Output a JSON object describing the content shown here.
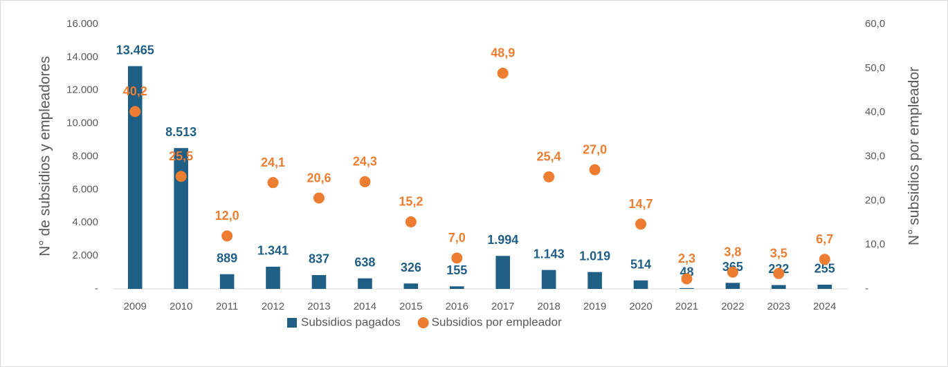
{
  "chart_data": {
    "type": "bar",
    "y_label": "N° de subsidios y empleadores",
    "y2_label": "N° subsidios por empleador",
    "categories": [
      "2009",
      "2010",
      "2011",
      "2012",
      "2013",
      "2014",
      "2015",
      "2016",
      "2017",
      "2018",
      "2019",
      "2020",
      "2021",
      "2022",
      "2023",
      "2024"
    ],
    "series": [
      {
        "name": "Subsidios pagados",
        "type": "bar",
        "color": "#1f5f86",
        "values": [
          13465,
          8513,
          889,
          1341,
          837,
          638,
          326,
          155,
          1994,
          1143,
          1019,
          514,
          48,
          365,
          232,
          255
        ],
        "value_labels": [
          "13.465",
          "8.513",
          "889",
          "1.341",
          "837",
          "638",
          "326",
          "155",
          "1.994",
          "1.143",
          "1.019",
          "514",
          "48",
          "365",
          "232",
          "255"
        ]
      },
      {
        "name": "Subsidios por empleador",
        "type": "scatter",
        "axis": "y2",
        "color": "#ed7d31",
        "values": [
          40.2,
          25.5,
          12.0,
          24.1,
          20.6,
          24.3,
          15.2,
          7.0,
          48.9,
          25.4,
          27.0,
          14.7,
          2.3,
          3.8,
          3.5,
          6.7
        ],
        "value_labels": [
          "40,2",
          "25,5",
          "12,0",
          "24,1",
          "20,6",
          "24,3",
          "15,2",
          "7,0",
          "48,9",
          "25,4",
          "27,0",
          "14,7",
          "2,3",
          "3,8",
          "3,5",
          "6,7"
        ]
      }
    ],
    "ylim": [
      0,
      16000
    ],
    "yticks": [
      {
        "value": 0,
        "label": "-"
      },
      {
        "value": 2000,
        "label": "2.000"
      },
      {
        "value": 4000,
        "label": "4.000"
      },
      {
        "value": 6000,
        "label": "6.000"
      },
      {
        "value": 8000,
        "label": "8.000"
      },
      {
        "value": 10000,
        "label": "10.000"
      },
      {
        "value": 12000,
        "label": "12.000"
      },
      {
        "value": 14000,
        "label": "14.000"
      },
      {
        "value": 16000,
        "label": "16.000"
      }
    ],
    "y2lim": [
      0,
      60
    ],
    "y2ticks": [
      {
        "value": 0,
        "label": "-"
      },
      {
        "value": 10,
        "label": "10,0"
      },
      {
        "value": 20,
        "label": "20,0"
      },
      {
        "value": 30,
        "label": "30,0"
      },
      {
        "value": 40,
        "label": "40,0"
      },
      {
        "value": 50,
        "label": "50,0"
      },
      {
        "value": 60,
        "label": "60,0"
      }
    ],
    "grid": false,
    "legend": "bottom"
  }
}
